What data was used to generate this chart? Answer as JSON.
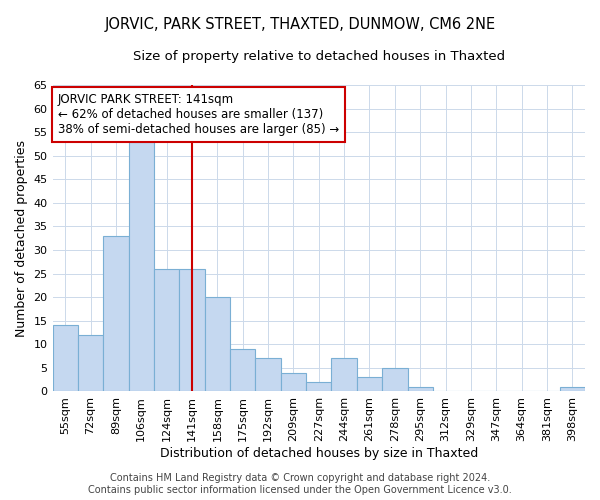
{
  "title": "JORVIC, PARK STREET, THAXTED, DUNMOW, CM6 2NE",
  "subtitle": "Size of property relative to detached houses in Thaxted",
  "xlabel": "Distribution of detached houses by size in Thaxted",
  "ylabel": "Number of detached properties",
  "categories": [
    "55sqm",
    "72sqm",
    "89sqm",
    "106sqm",
    "124sqm",
    "141sqm",
    "158sqm",
    "175sqm",
    "192sqm",
    "209sqm",
    "227sqm",
    "244sqm",
    "261sqm",
    "278sqm",
    "295sqm",
    "312sqm",
    "329sqm",
    "347sqm",
    "364sqm",
    "381sqm",
    "398sqm"
  ],
  "values": [
    14,
    12,
    33,
    53,
    26,
    26,
    20,
    9,
    7,
    4,
    2,
    7,
    3,
    5,
    1,
    0,
    0,
    0,
    0,
    0,
    1
  ],
  "bar_color": "#c5d8f0",
  "bar_edge_color": "#7aafd4",
  "vline_color": "#cc0000",
  "vline_index": 5,
  "ylim": [
    0,
    65
  ],
  "yticks": [
    0,
    5,
    10,
    15,
    20,
    25,
    30,
    35,
    40,
    45,
    50,
    55,
    60,
    65
  ],
  "annotation_line1": "JORVIC PARK STREET: 141sqm",
  "annotation_line2": "← 62% of detached houses are smaller (137)",
  "annotation_line3": "38% of semi-detached houses are larger (85) →",
  "annotation_box_color": "#ffffff",
  "annotation_box_edge": "#cc0000",
  "footer1": "Contains HM Land Registry data © Crown copyright and database right 2024.",
  "footer2": "Contains public sector information licensed under the Open Government Licence v3.0.",
  "background_color": "#ffffff",
  "grid_color": "#ccd9ea",
  "title_fontsize": 10.5,
  "subtitle_fontsize": 9.5,
  "axis_label_fontsize": 9,
  "tick_fontsize": 8,
  "annotation_fontsize": 8.5,
  "footer_fontsize": 7
}
